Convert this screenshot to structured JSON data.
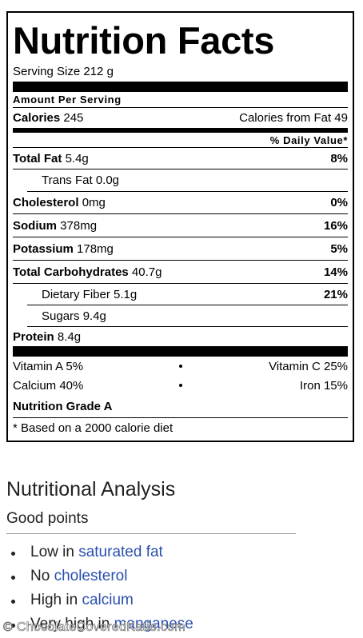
{
  "label": {
    "title": "Nutrition Facts",
    "serving_size": "Serving Size 212 g",
    "amount_per_serving": "Amount Per Serving",
    "calories": {
      "name": "Calories",
      "amount": "245",
      "from_fat": "Calories from Fat 49"
    },
    "daily_value_header": "% Daily Value*",
    "rows": [
      {
        "name": "Total Fat",
        "amount": "5.4g",
        "dv": "8%"
      },
      {
        "name": "Trans Fat",
        "amount": "0.0g"
      },
      {
        "name": "Cholesterol",
        "amount": "0mg",
        "dv": "0%"
      },
      {
        "name": "Sodium",
        "amount": "378mg",
        "dv": "16%"
      },
      {
        "name": "Potassium",
        "amount": "178mg",
        "dv": "5%"
      },
      {
        "name": "Total Carbohydrates",
        "amount": "40.7g",
        "dv": "14%"
      },
      {
        "name": "Dietary Fiber",
        "amount": "5.1g",
        "dv": "21%"
      },
      {
        "name": "Sugars",
        "amount": "9.4g"
      },
      {
        "name": "Protein",
        "amount": "8.4g"
      }
    ],
    "vitamins": [
      [
        "Vitamin A 5%",
        "Vitamin C 25%"
      ],
      [
        "Calcium 40%",
        "Iron 15%"
      ]
    ],
    "grade": "Nutrition Grade A",
    "footnote": "* Based on a 2000 calorie diet"
  },
  "analysis": {
    "title": "Nutritional Analysis",
    "subtitle": "Good points",
    "items": [
      {
        "prefix": "Low in",
        "link": "saturated fat"
      },
      {
        "prefix": "No",
        "link": "cholesterol"
      },
      {
        "prefix": "High in",
        "link": "calcium"
      },
      {
        "prefix": "Very high in",
        "link": "manganese"
      }
    ]
  },
  "watermark": "© ChocolateCoveredKatie.com"
}
